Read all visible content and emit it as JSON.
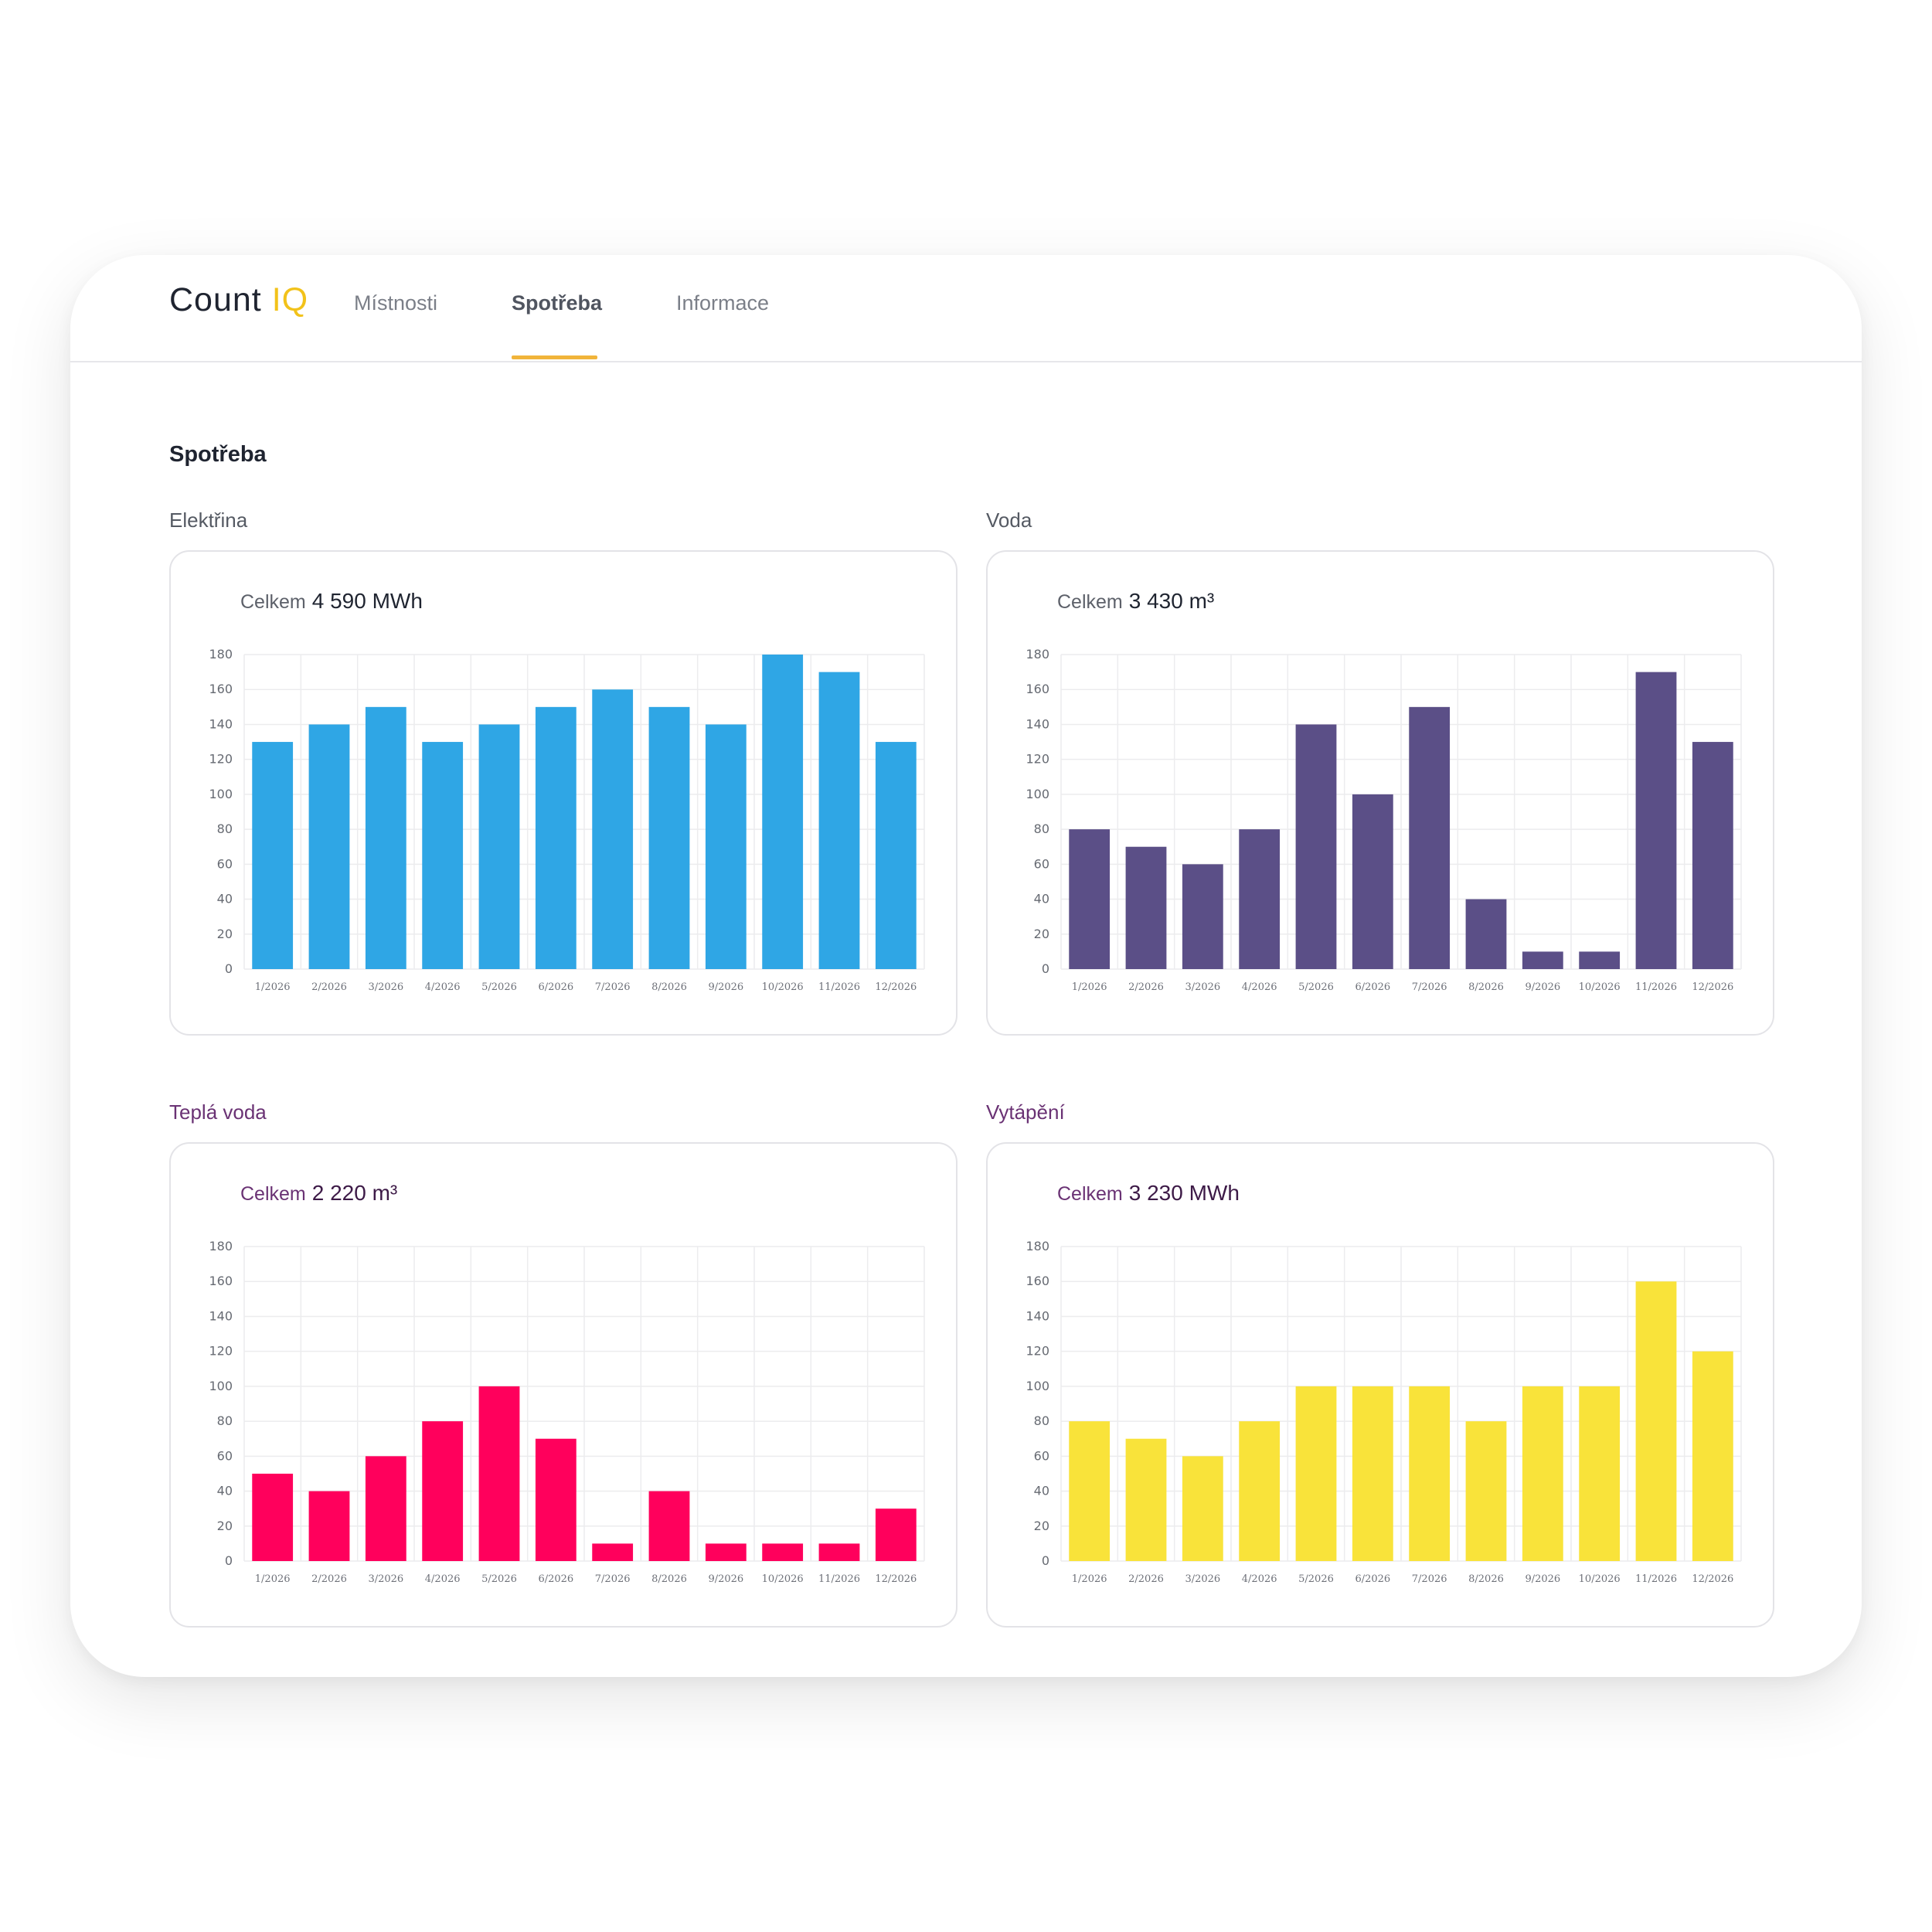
{
  "header": {
    "logo_text": "Count",
    "logo_accent": "IQ",
    "nav": [
      {
        "label": "Místnosti",
        "active": false
      },
      {
        "label": "Spotřeba",
        "active": true
      },
      {
        "label": "Informace",
        "active": false
      }
    ]
  },
  "page_title": "Spotřeba",
  "total_label": "Celkem",
  "panels": [
    {
      "label": "Elektřina",
      "total": "4 590 MWh"
    },
    {
      "label": "Voda",
      "total": "3 430 m³"
    },
    {
      "label": "Teplá voda",
      "total": "2 220 m³"
    },
    {
      "label": "Vytápění",
      "total": "3 230 MWh"
    }
  ],
  "chart_data": [
    {
      "type": "bar",
      "categories": [
        "1/2026",
        "2/2026",
        "3/2026",
        "4/2026",
        "5/2026",
        "6/2026",
        "7/2026",
        "8/2026",
        "9/2026",
        "10/2026",
        "11/2026",
        "12/2026"
      ],
      "values": [
        130,
        140,
        150,
        130,
        140,
        150,
        160,
        150,
        140,
        180,
        170,
        130
      ],
      "ylim": [
        0,
        180
      ],
      "yticks": [
        0,
        20,
        40,
        60,
        80,
        100,
        120,
        140,
        160,
        180
      ],
      "color": "#2fa6e5"
    },
    {
      "type": "bar",
      "categories": [
        "1/2026",
        "2/2026",
        "3/2026",
        "4/2026",
        "5/2026",
        "6/2026",
        "7/2026",
        "8/2026",
        "9/2026",
        "10/2026",
        "11/2026",
        "12/2026"
      ],
      "values": [
        80,
        70,
        60,
        80,
        140,
        100,
        150,
        40,
        10,
        10,
        170,
        130
      ],
      "ylim": [
        0,
        180
      ],
      "yticks": [
        0,
        20,
        40,
        60,
        80,
        100,
        120,
        140,
        160,
        180
      ],
      "color": "#5b4f87"
    },
    {
      "type": "bar",
      "categories": [
        "1/2026",
        "2/2026",
        "3/2026",
        "4/2026",
        "5/2026",
        "6/2026",
        "7/2026",
        "8/2026",
        "9/2026",
        "10/2026",
        "11/2026",
        "12/2026"
      ],
      "values": [
        50,
        40,
        60,
        80,
        100,
        70,
        10,
        40,
        10,
        10,
        10,
        30
      ],
      "ylim": [
        0,
        180
      ],
      "yticks": [
        0,
        20,
        40,
        60,
        80,
        100,
        120,
        140,
        160,
        180
      ],
      "color": "#ff005c"
    },
    {
      "type": "bar",
      "categories": [
        "1/2026",
        "2/2026",
        "3/2026",
        "4/2026",
        "5/2026",
        "6/2026",
        "7/2026",
        "8/2026",
        "9/2026",
        "10/2026",
        "11/2026",
        "12/2026"
      ],
      "values": [
        80,
        70,
        60,
        80,
        100,
        100,
        100,
        80,
        100,
        100,
        160,
        120
      ],
      "ylim": [
        0,
        180
      ],
      "yticks": [
        0,
        20,
        40,
        60,
        80,
        100,
        120,
        140,
        160,
        180
      ],
      "color": "#f9e33a"
    }
  ]
}
